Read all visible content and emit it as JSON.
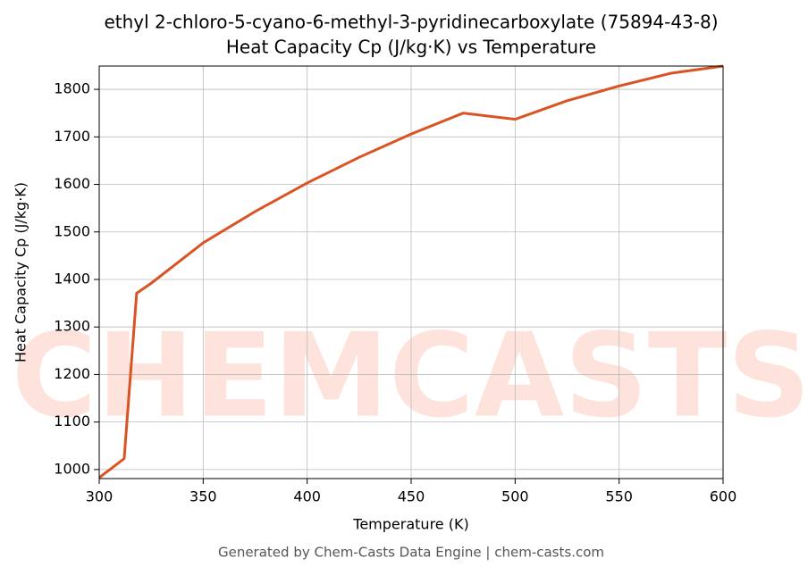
{
  "chart_data": {
    "type": "line",
    "title": "ethyl 2-chloro-5-cyano-6-methyl-3-pyridinecarboxylate (75894-43-8)",
    "subtitle": "Heat Capacity Cp (J/kg·K) vs Temperature",
    "x_label": "Temperature (K)",
    "y_label": "Heat Capacity Cp (J/kg·K)",
    "footer": "Generated by Chem-Casts Data Engine | chem-casts.com",
    "watermark": "CHEMCASTS",
    "x": [
      300,
      312,
      318,
      325,
      350,
      375,
      400,
      425,
      450,
      475,
      500,
      525,
      550,
      575,
      600
    ],
    "series": [
      {
        "name": "Cp",
        "color": "#d95323",
        "values": [
          983,
          1023,
          1371,
          1392,
          1477,
          1543,
          1603,
          1657,
          1706,
          1750,
          1737,
          1776,
          1807,
          1834,
          1849
        ]
      }
    ],
    "xlim": [
      300,
      600
    ],
    "xticks": [
      300,
      350,
      400,
      450,
      500,
      550,
      600
    ],
    "ylim": [
      981,
      1849
    ],
    "yticks": [
      1000,
      1100,
      1200,
      1300,
      1400,
      1500,
      1600,
      1700,
      1800
    ],
    "grid": true
  }
}
